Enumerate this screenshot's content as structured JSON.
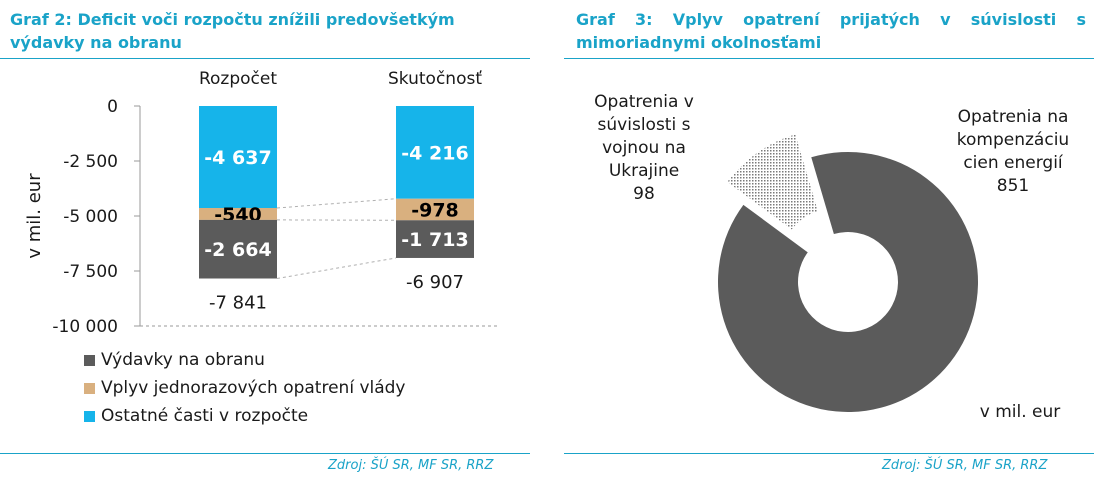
{
  "left": {
    "title": "Graf 2: Deficit voči rozpočtu znížili predovšetkým výdavky na obranu",
    "source": "Zdroj: ŠÚ SR, MF SR, RRZ"
  },
  "right": {
    "title": "Graf 3: Vplyv opatrení prijatých v súvislosti s mimoriadnymi okolnosťami",
    "source": "Zdroj: ŠÚ SR, MF SR, RRZ"
  },
  "chart_data": [
    {
      "type": "bar",
      "stacked": true,
      "title": "Graf 2: Deficit voči rozpočtu znížili predovšetkým výdavky na obranu",
      "ylabel": "v mil. eur",
      "ylim": [
        -10000,
        0
      ],
      "yticks": [
        0,
        -2500,
        -5000,
        -7500,
        -10000
      ],
      "ytick_labels": [
        "0",
        "-2 500",
        "-5 000",
        "-7 500",
        "-10 000"
      ],
      "categories": [
        "Rozpočet",
        "Skutočnosť"
      ],
      "series": [
        {
          "name": "Ostatné časti v rozpočte",
          "color": "#16b4ea",
          "label_color": "#ffffff",
          "values": [
            -4637,
            -4216
          ],
          "labels": [
            "-4 637",
            "-4 216"
          ]
        },
        {
          "name": "Vplyv jednorazových opatrení vlády",
          "color": "#d9b07f",
          "label_color": "#000000",
          "values": [
            -540,
            -978
          ],
          "labels": [
            "-540",
            "-978"
          ]
        },
        {
          "name": "Výdavky na obranu",
          "color": "#5b5b5b",
          "label_color": "#ffffff",
          "values": [
            -2664,
            -1713
          ],
          "labels": [
            "-2 664",
            "-1 713"
          ]
        }
      ],
      "totals": [
        -7841,
        -6907
      ],
      "total_labels": [
        "-7 841",
        "-6 907"
      ],
      "legend_order": [
        "Výdavky na obranu",
        "Vplyv jednorazových opatrení vlády",
        "Ostatné časti v rozpočte"
      ],
      "legend_position": "bottom-left",
      "grid": false
    },
    {
      "type": "pie",
      "donut": true,
      "title": "Graf 3: Vplyv opatrení prijatých v súvislosti s mimoriadnymi okolnosťami",
      "unit_note": "v mil. eur",
      "slices": [
        {
          "name": "Opatrenia na kompenzáciu cien energií",
          "value": 851,
          "color": "#5b5b5b",
          "fill": "solid",
          "label_lines": [
            "Opatrenia na",
            "kompenzáciu",
            "cien energií",
            "851"
          ]
        },
        {
          "name": "Opatrenia v súvislosti s vojnou na Ukrajine",
          "value": 98,
          "color": "#8a8a8a",
          "fill": "dotted",
          "exploded": true,
          "label_lines": [
            "Opatrenia v",
            "súvislosti s",
            "vojnou na",
            "Ukrajine",
            "98"
          ]
        }
      ]
    }
  ]
}
